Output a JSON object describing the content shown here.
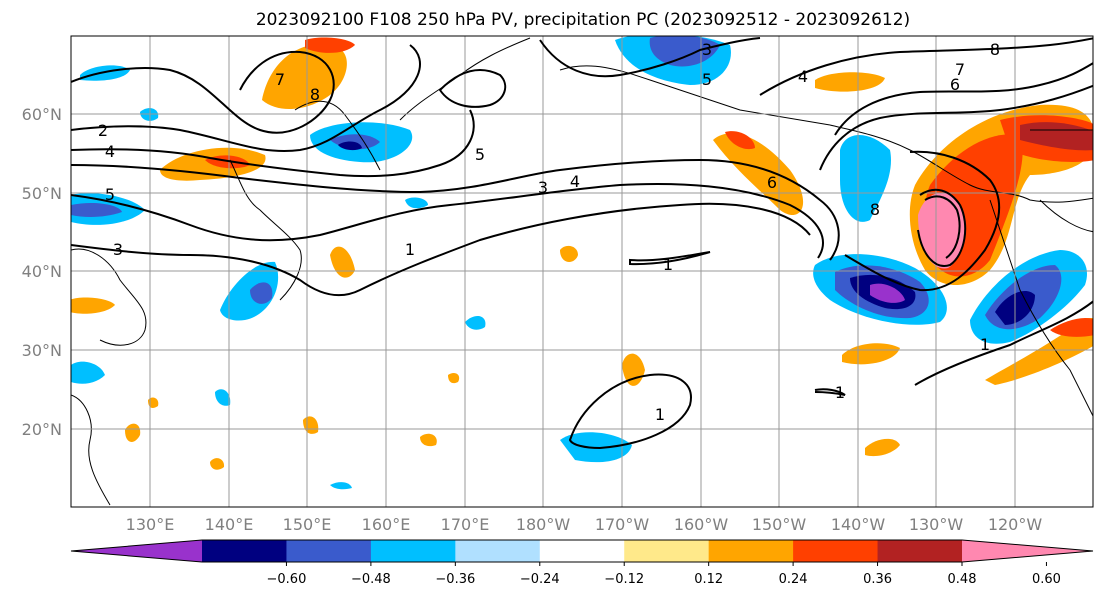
{
  "title": "2023092100 F108 250 hPa PV, precipitation PC (2023092512 - 2023092612)",
  "lat_labels": [
    "60°N",
    "50°N",
    "40°N",
    "30°N",
    "20°N"
  ],
  "lon_labels": [
    "130°E",
    "140°E",
    "150°E",
    "160°E",
    "170°E",
    "180°W",
    "170°W",
    "160°W",
    "150°W",
    "140°W",
    "130°W",
    "120°W"
  ],
  "colorbar": {
    "ticks": [
      "−0.60",
      "−0.48",
      "−0.36",
      "−0.24",
      "−0.12",
      "0.12",
      "0.24",
      "0.36",
      "0.48",
      "0.60"
    ],
    "colors": [
      "#9932cc",
      "#000080",
      "#3a5bcc",
      "#00bfff",
      "#b0e0ff",
      "#ffffff",
      "#ffe98a",
      "#ffa500",
      "#ff4000",
      "#b22222",
      "#ff88b0"
    ]
  },
  "contour_labels": {
    "c1": "1",
    "c2": "2",
    "c3": "3",
    "c4": "4",
    "c5": "5",
    "c6": "6",
    "c7": "7",
    "c8": "8"
  }
}
